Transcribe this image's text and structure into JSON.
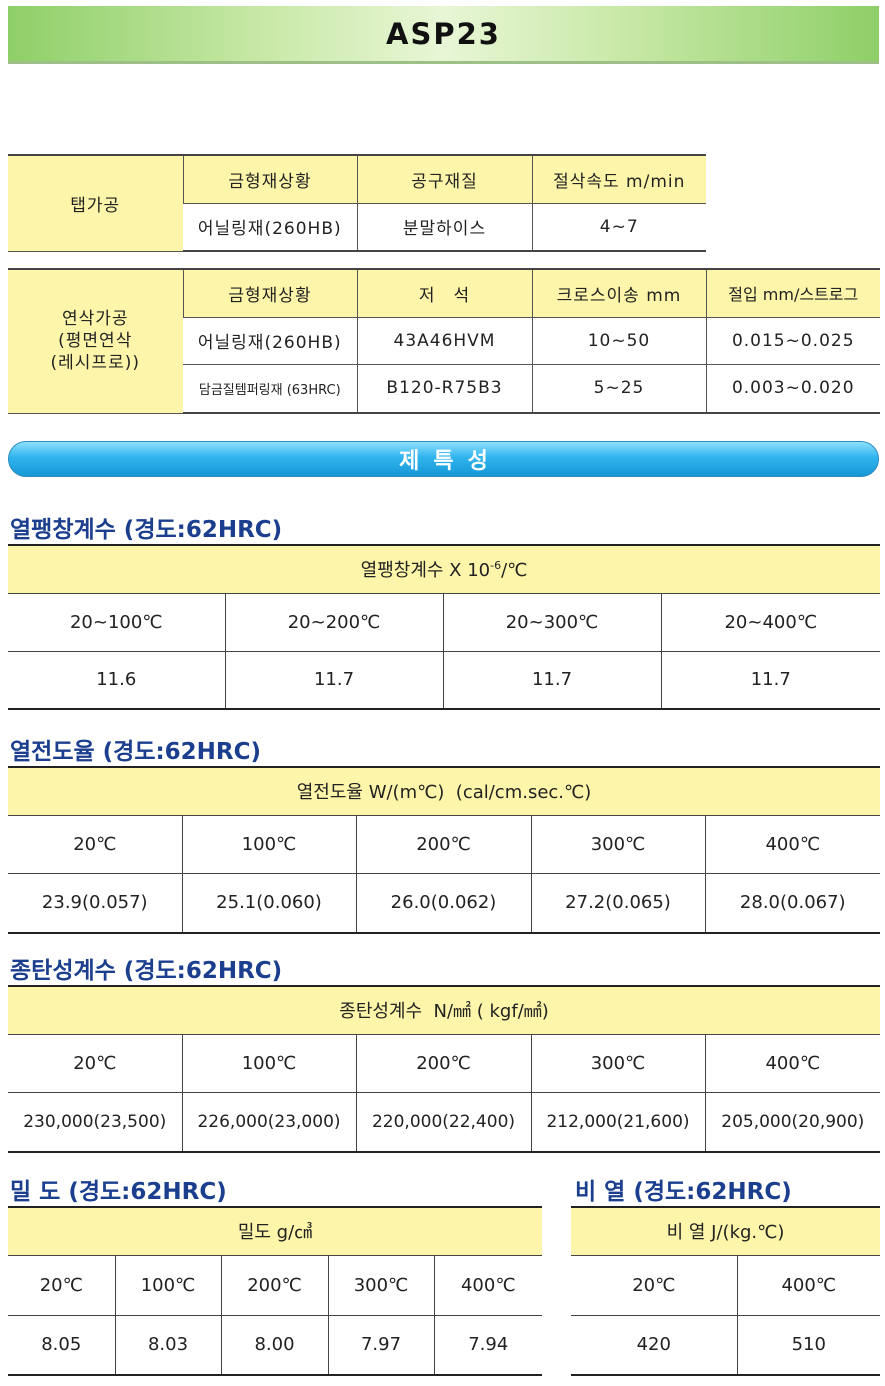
{
  "title": "ASP23",
  "tap": {
    "label": "탭가공",
    "headers": [
      "금형재상황",
      "공구재질",
      "절삭속도 m/min"
    ],
    "row": [
      "어닐링재(260HB)",
      "분말하이스",
      "4~7"
    ]
  },
  "grind": {
    "label_lines": [
      "연삭가공",
      "(평면연삭",
      "(레시프로))"
    ],
    "headers": [
      "금형재상황",
      "저　석",
      "크로스이송 mm",
      "절입 mm/스트로그"
    ],
    "rows": [
      [
        "어닐링재(260HB)",
        "43A46HVM",
        "10~50",
        "0.015~0.025"
      ],
      [
        "담금질템퍼링재 (63HRC)",
        "B120-R75B3",
        "5~25",
        "0.003~0.020"
      ]
    ]
  },
  "properties_banner": "제특성",
  "thermal_expansion": {
    "title": "열팽창계수 (경도:62HRC)",
    "header_main": "열팽창계수 X 10",
    "header_sup": "-6",
    "header_unit": "/℃",
    "temps": [
      "20~100℃",
      "20~200℃",
      "20~300℃",
      "20~400℃"
    ],
    "values": [
      "11.6",
      "11.7",
      "11.7",
      "11.7"
    ]
  },
  "thermal_conductivity": {
    "title": "열전도율 (경도:62HRC)",
    "header": "열전도율 W/(m℃)  (cal/cm.sec.℃)",
    "temps": [
      "20℃",
      "100℃",
      "200℃",
      "300℃",
      "400℃"
    ],
    "values": [
      "23.9(0.057)",
      "25.1(0.060)",
      "26.0(0.062)",
      "27.2(0.065)",
      "28.0(0.067)"
    ]
  },
  "elastic_modulus": {
    "title": "종탄성계수 (경도:62HRC)",
    "header": "종탄성계수  N/㎟ ( kgf/㎟)",
    "temps": [
      "20℃",
      "100℃",
      "200℃",
      "300℃",
      "400℃"
    ],
    "values": [
      "230,000(23,500)",
      "226,000(23,000)",
      "220,000(22,400)",
      "212,000(21,600)",
      "205,000(20,900)"
    ]
  },
  "density": {
    "title": "밀 도 (경도:62HRC)",
    "header": "밀도 g/㎤",
    "temps": [
      "20℃",
      "100℃",
      "200℃",
      "300℃",
      "400℃"
    ],
    "values": [
      "8.05",
      "8.03",
      "8.00",
      "7.97",
      "7.94"
    ]
  },
  "specific_heat": {
    "title": "비 열 (경도:62HRC)",
    "header": "비 열 J/(kg.℃)",
    "temps": [
      "20℃",
      "400℃"
    ],
    "values": [
      "420",
      "510"
    ]
  }
}
